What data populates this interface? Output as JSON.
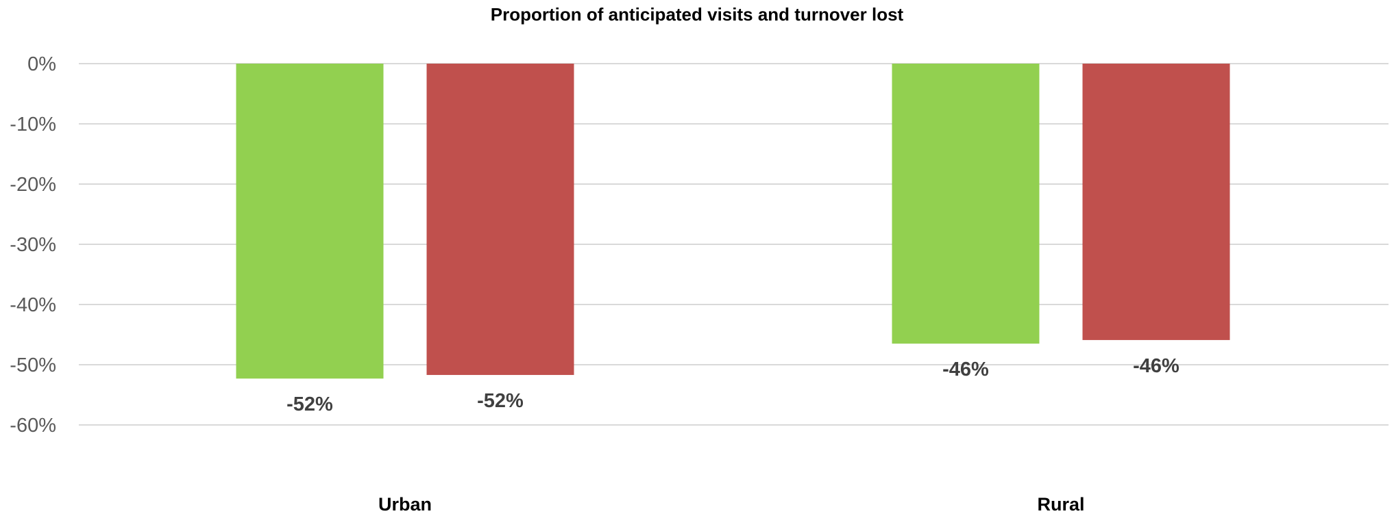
{
  "chart_data": {
    "type": "bar",
    "title": "Proportion of anticipated visits and turnover lost",
    "xlabel": "",
    "ylabel": "",
    "categories": [
      "Urban",
      "Rural"
    ],
    "series": [
      {
        "values": [
          -52.3,
          -46.5
        ],
        "labels": [
          "-52%",
          "-46%"
        ],
        "color": "#92d050"
      },
      {
        "values": [
          -51.7,
          -45.9
        ],
        "labels": [
          "-52%",
          "-46%"
        ],
        "color": "#c0504d"
      }
    ],
    "ylim": [
      -60,
      0
    ],
    "yticks": [
      0,
      -10,
      -20,
      -30,
      -40,
      -50,
      -60
    ],
    "ytick_labels": [
      "0%",
      "-10%",
      "-20%",
      "-30%",
      "-40%",
      "-50%",
      "-60%"
    ],
    "grid": true,
    "legend": "none"
  }
}
